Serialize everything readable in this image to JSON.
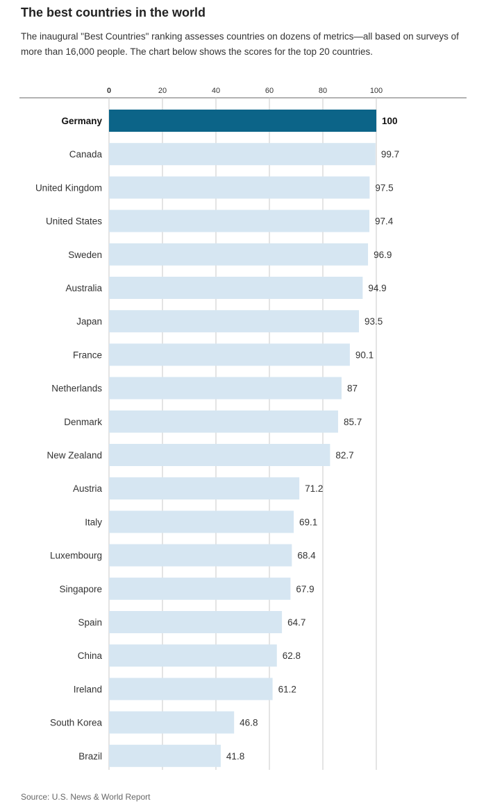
{
  "title": "The best countries in the world",
  "subtitle": "The inaugural \"Best Countries\" ranking assesses countries on dozens of metrics—all based on surveys of more than 16,000 people. The chart below shows the scores for the top 20 countries.",
  "source": "Source: U.S. News & World Report",
  "colors": {
    "highlight": "#0c6488",
    "bar": "#d6e6f2",
    "grid": "#c8c8c8",
    "axis": "#999999",
    "label": "#333333"
  },
  "chart_data": {
    "type": "bar",
    "orientation": "horizontal",
    "xlim": [
      0,
      100
    ],
    "x_ticks": [
      0,
      20,
      40,
      60,
      80,
      100
    ],
    "x_axis_position": "top",
    "grid": true,
    "highlighted_category": "Germany",
    "categories": [
      "Germany",
      "Canada",
      "United Kingdom",
      "United States",
      "Sweden",
      "Australia",
      "Japan",
      "France",
      "Netherlands",
      "Denmark",
      "New Zealand",
      "Austria",
      "Italy",
      "Luxembourg",
      "Singapore",
      "Spain",
      "China",
      "Ireland",
      "South Korea",
      "Brazil"
    ],
    "values": [
      100,
      99.7,
      97.5,
      97.4,
      96.9,
      94.9,
      93.5,
      90.1,
      87,
      85.7,
      82.7,
      71.2,
      69.1,
      68.4,
      67.9,
      64.7,
      62.8,
      61.2,
      46.8,
      41.8
    ],
    "value_labels": [
      "100",
      "99.7",
      "97.5",
      "97.4",
      "96.9",
      "94.9",
      "93.5",
      "90.1",
      "87",
      "85.7",
      "82.7",
      "71.2",
      "69.1",
      "68.4",
      "67.9",
      "64.7",
      "62.8",
      "61.2",
      "46.8",
      "41.8"
    ]
  }
}
